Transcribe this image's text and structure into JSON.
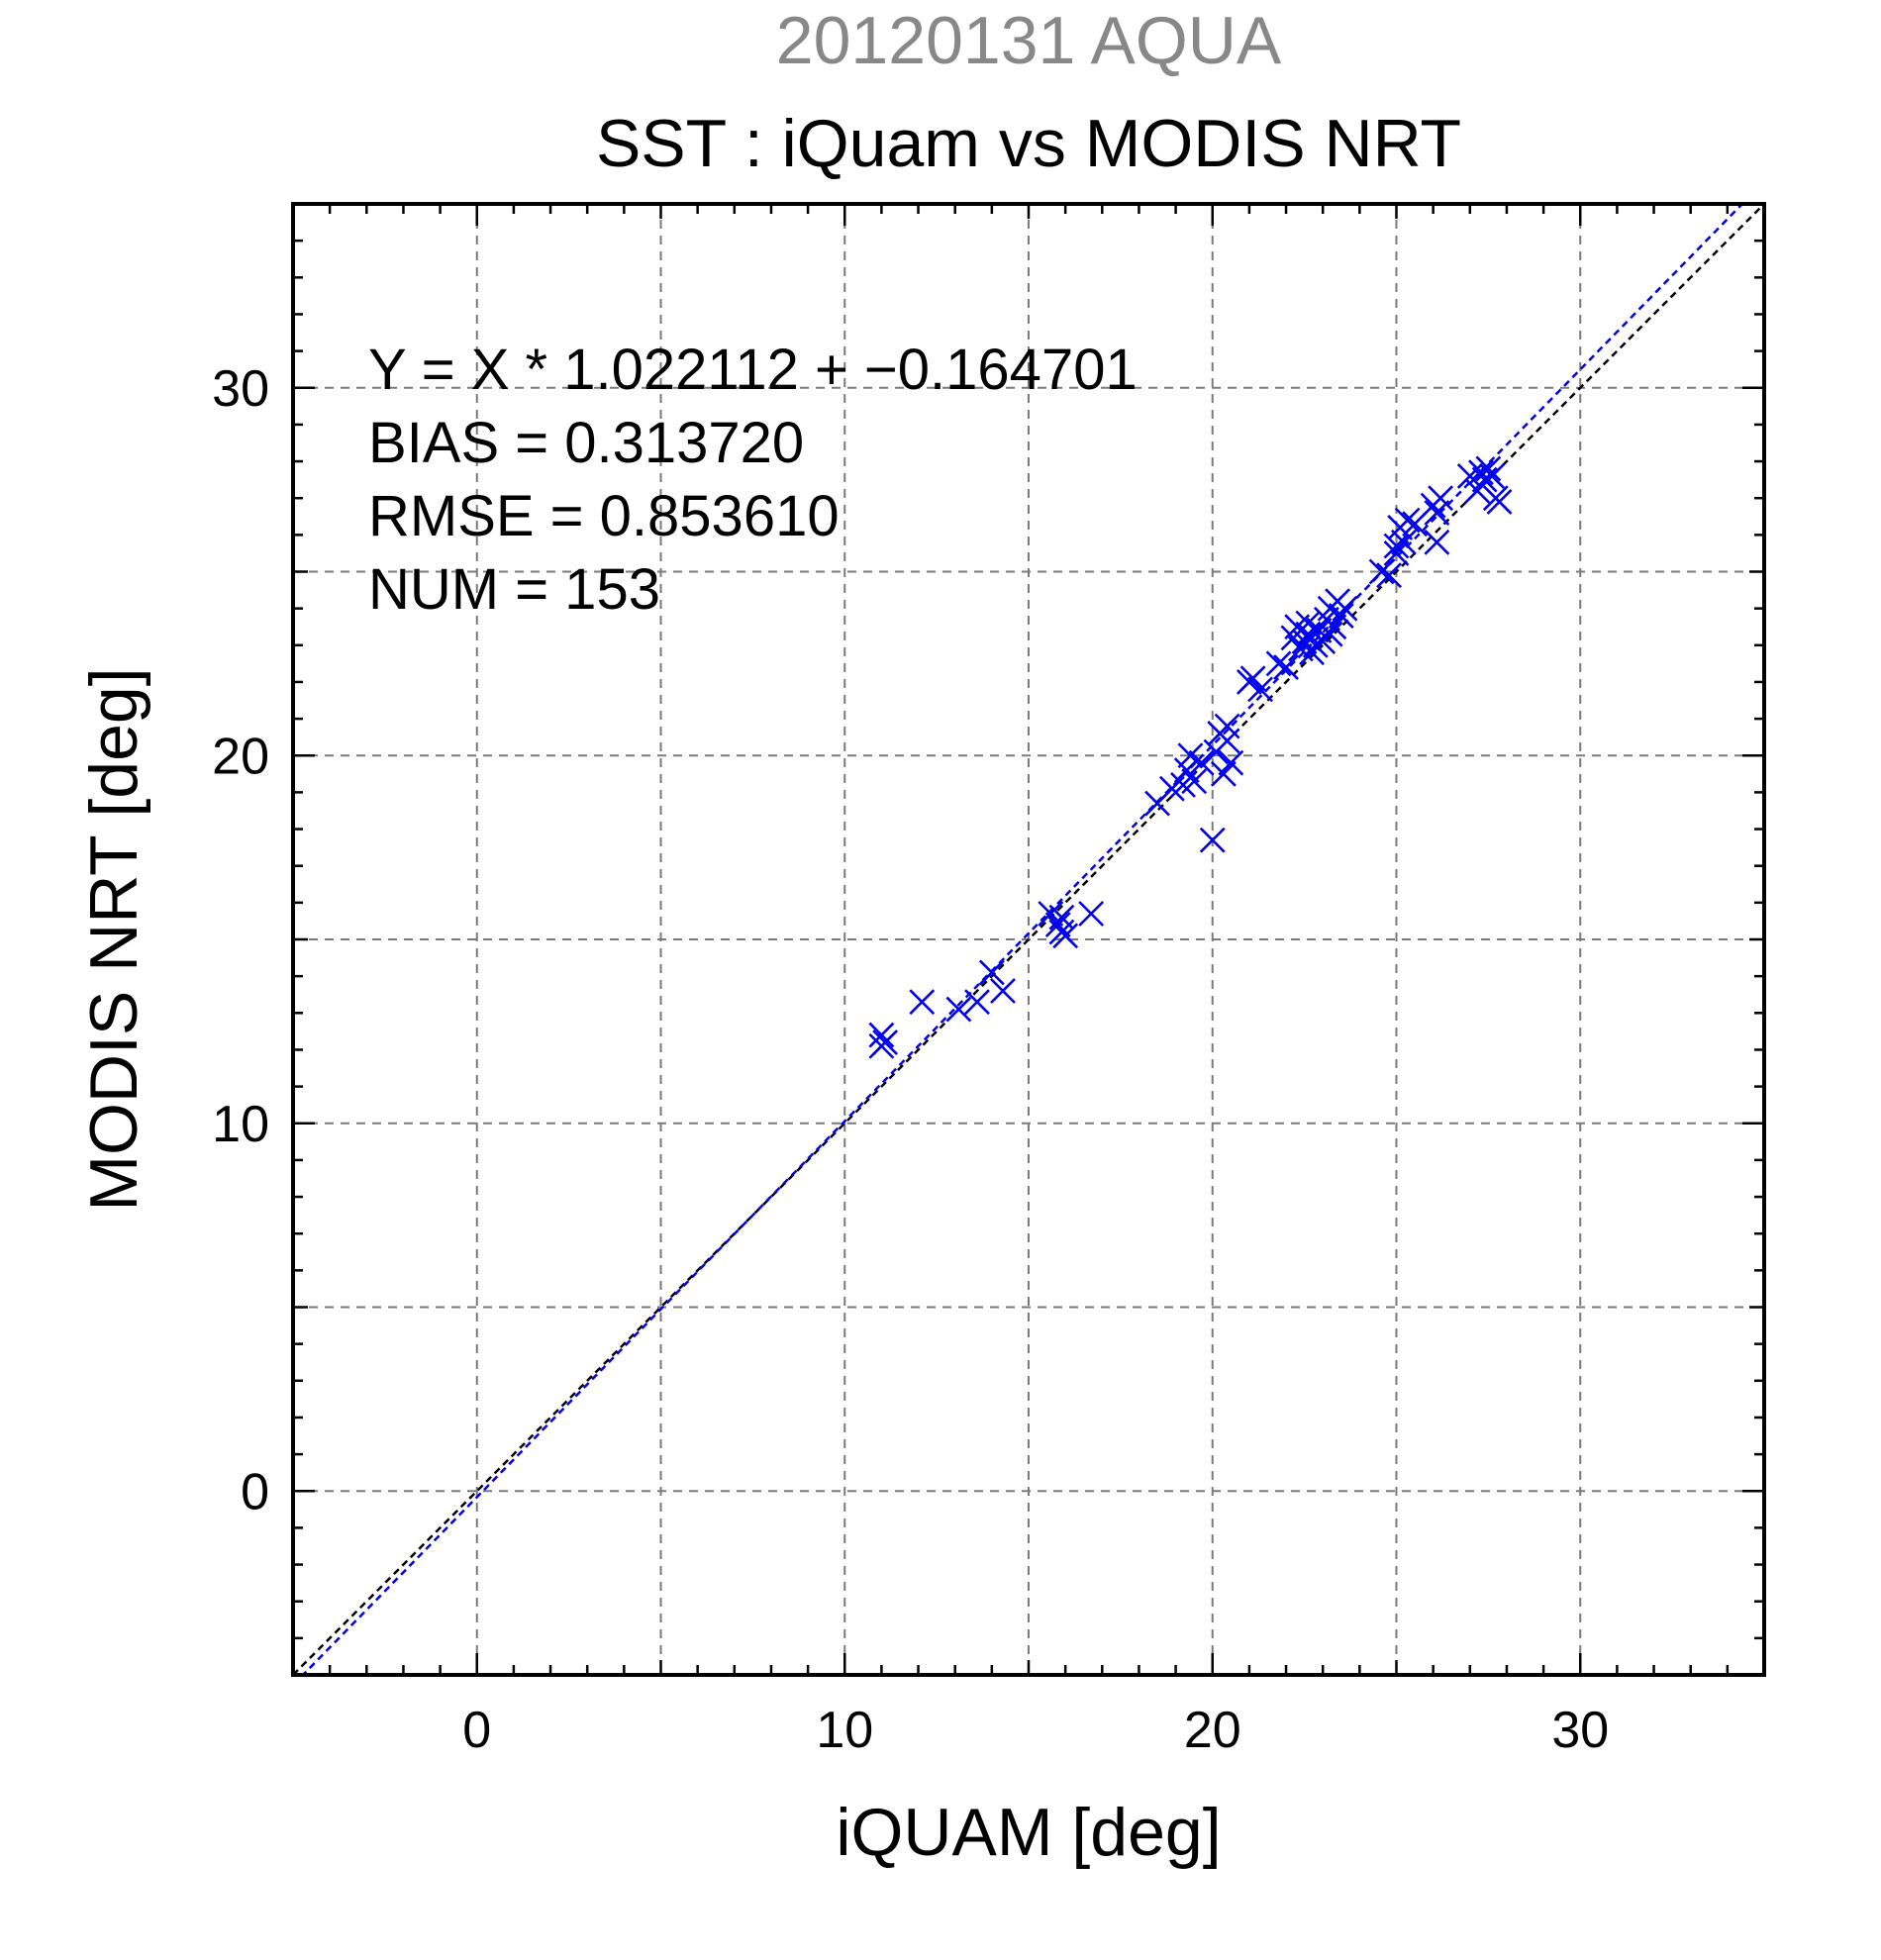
{
  "chart_data": {
    "type": "scatter",
    "subtitle": "20120131 AQUA",
    "title": "SST : iQuam vs MODIS NRT",
    "xlabel": "iQUAM [deg]",
    "ylabel": "MODIS NRT [deg]",
    "xlim": [
      -5,
      35
    ],
    "ylim": [
      -5,
      35
    ],
    "major_ticks": [
      0,
      10,
      20,
      30
    ],
    "grid_values": [
      0,
      5,
      10,
      15,
      20,
      25,
      30
    ],
    "grid": true,
    "stats": {
      "equation": "Y = X * 1.022112 + −0.164701",
      "bias": "BIAS = 0.313720",
      "rmse": "RMSE = 0.853610",
      "num": "NUM = 153"
    },
    "fit": {
      "slope": 1.022112,
      "intercept": -0.164701
    },
    "colors": {
      "marker": "#0000ee",
      "fit_line": "#0000ee",
      "identity_line": "#000000",
      "subtitle": "#888888"
    },
    "series": [
      {
        "marker": "x",
        "points": [
          [
            11.0,
            12.4
          ],
          [
            11.0,
            12.1
          ],
          [
            11.1,
            12.2
          ],
          [
            12.1,
            13.3
          ],
          [
            13.1,
            13.1
          ],
          [
            13.6,
            13.3
          ],
          [
            14.0,
            14.1
          ],
          [
            14.3,
            13.6
          ],
          [
            15.6,
            15.7
          ],
          [
            15.8,
            15.4
          ],
          [
            15.9,
            15.2
          ],
          [
            16.0,
            15.1
          ],
          [
            15.9,
            15.6
          ],
          [
            16.7,
            15.7
          ],
          [
            18.5,
            18.7
          ],
          [
            18.9,
            19.1
          ],
          [
            19.2,
            19.2
          ],
          [
            19.3,
            19.6
          ],
          [
            19.4,
            20.0
          ],
          [
            19.5,
            19.3
          ],
          [
            19.7,
            19.8
          ],
          [
            20.0,
            17.7
          ],
          [
            20.1,
            20.1
          ],
          [
            20.2,
            20.6
          ],
          [
            20.3,
            19.5
          ],
          [
            20.4,
            20.4
          ],
          [
            20.5,
            19.8
          ],
          [
            20.4,
            20.8
          ],
          [
            21.0,
            22.0
          ],
          [
            21.1,
            22.1
          ],
          [
            21.3,
            21.8
          ],
          [
            21.8,
            22.5
          ],
          [
            22.0,
            22.4
          ],
          [
            22.2,
            23.2
          ],
          [
            22.3,
            23.5
          ],
          [
            22.4,
            22.9
          ],
          [
            22.5,
            23.1
          ],
          [
            22.6,
            23.3
          ],
          [
            22.7,
            22.8
          ],
          [
            22.8,
            23.0
          ],
          [
            22.9,
            23.4
          ],
          [
            23.0,
            23.1
          ],
          [
            23.1,
            23.7
          ],
          [
            23.2,
            24.0
          ],
          [
            23.3,
            23.5
          ],
          [
            23.4,
            24.2
          ],
          [
            23.5,
            23.8
          ],
          [
            23.6,
            24.0
          ],
          [
            23.2,
            23.3
          ],
          [
            22.6,
            23.6
          ],
          [
            24.6,
            25.0
          ],
          [
            24.8,
            24.9
          ],
          [
            25.0,
            25.5
          ],
          [
            25.1,
            26.2
          ],
          [
            25.2,
            25.8
          ],
          [
            25.3,
            26.4
          ],
          [
            25.5,
            26.3
          ],
          [
            25.0,
            25.7
          ],
          [
            26.0,
            26.8
          ],
          [
            26.1,
            26.6
          ],
          [
            26.2,
            27.0
          ],
          [
            26.1,
            25.8
          ],
          [
            27.0,
            27.6
          ],
          [
            27.2,
            27.2
          ],
          [
            27.3,
            27.7
          ],
          [
            27.4,
            27.5
          ],
          [
            27.5,
            27.8
          ],
          [
            27.6,
            27.6
          ],
          [
            27.7,
            27.0
          ],
          [
            27.8,
            26.9
          ]
        ]
      }
    ]
  }
}
